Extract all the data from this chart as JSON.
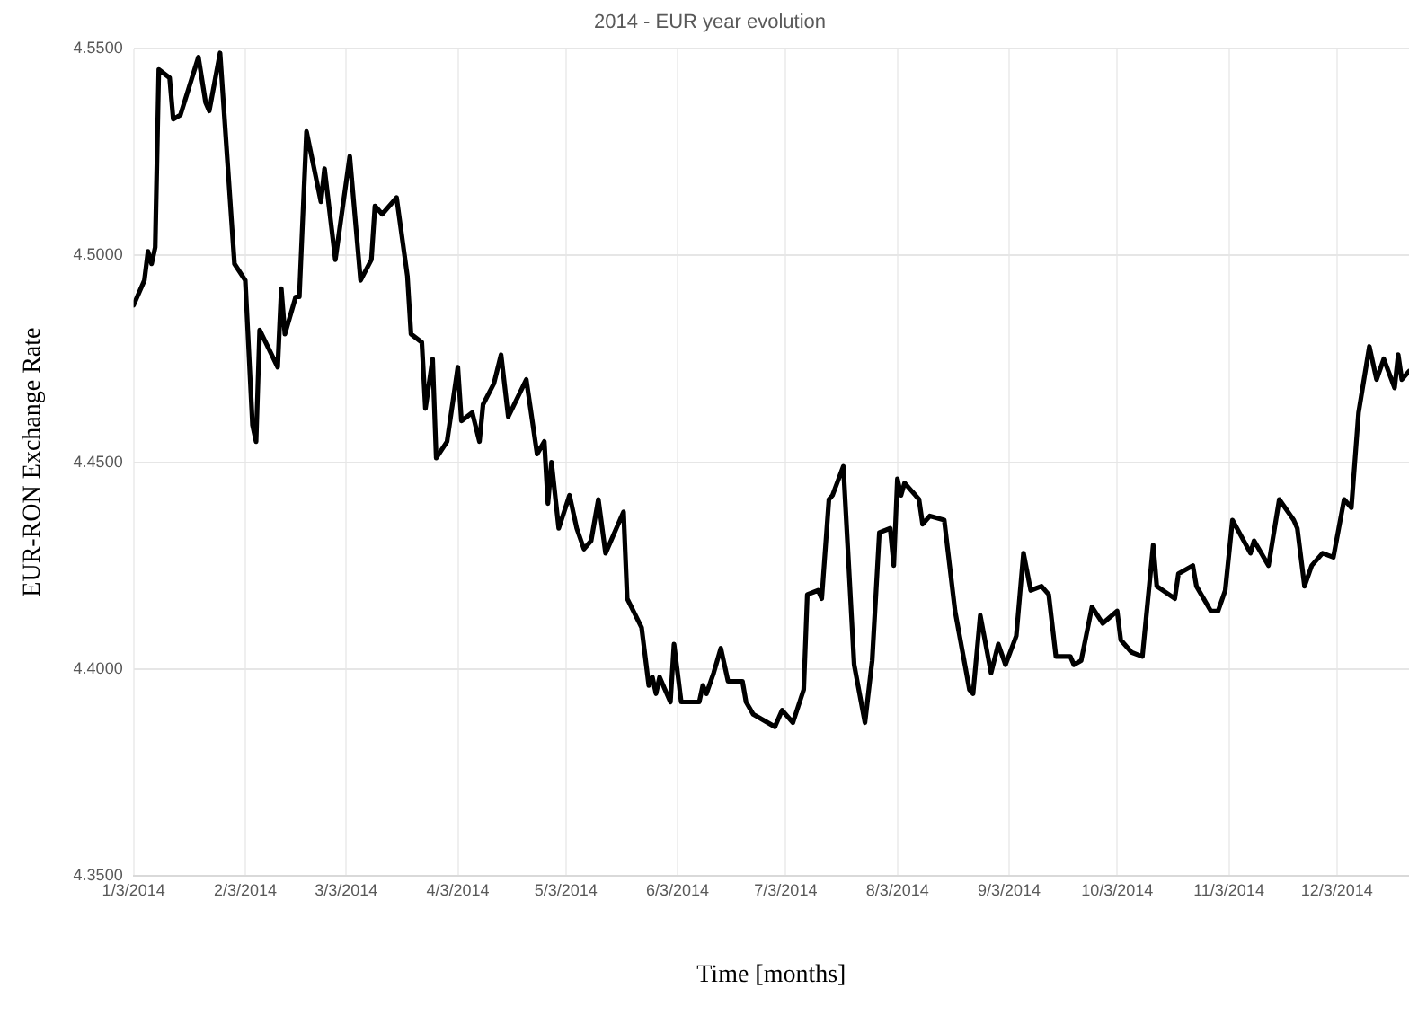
{
  "chart_data": {
    "type": "line",
    "title": "2014 - EUR year evolution",
    "xlabel": "Time [months]",
    "ylabel": "EUR-RON Exchange Rate",
    "x": [
      "2014-01-03",
      "2014-01-06",
      "2014-01-07",
      "2014-01-08",
      "2014-01-09",
      "2014-01-10",
      "2014-01-13",
      "2014-01-14",
      "2014-01-16",
      "2014-01-21",
      "2014-01-23",
      "2014-01-24",
      "2014-01-27",
      "2014-01-31",
      "2014-02-03",
      "2014-02-05",
      "2014-02-06",
      "2014-02-07",
      "2014-02-12",
      "2014-02-13",
      "2014-02-14",
      "2014-02-17",
      "2014-02-18",
      "2014-02-20",
      "2014-02-24",
      "2014-02-25",
      "2014-02-28",
      "2014-03-04",
      "2014-03-07",
      "2014-03-10",
      "2014-03-11",
      "2014-03-13",
      "2014-03-17",
      "2014-03-20",
      "2014-03-21",
      "2014-03-24",
      "2014-03-25",
      "2014-03-27",
      "2014-03-28",
      "2014-03-31",
      "2014-04-03",
      "2014-04-04",
      "2014-04-07",
      "2014-04-09",
      "2014-04-10",
      "2014-04-13",
      "2014-04-15",
      "2014-04-17",
      "2014-04-22",
      "2014-04-25",
      "2014-04-27",
      "2014-04-28",
      "2014-04-29",
      "2014-05-01",
      "2014-05-04",
      "2014-05-06",
      "2014-05-08",
      "2014-05-10",
      "2014-05-12",
      "2014-05-14",
      "2014-05-19",
      "2014-05-20",
      "2014-05-24",
      "2014-05-26",
      "2014-05-27",
      "2014-05-28",
      "2014-05-29",
      "2014-06-01",
      "2014-06-02",
      "2014-06-04",
      "2014-06-09",
      "2014-06-10",
      "2014-06-11",
      "2014-06-13",
      "2014-06-15",
      "2014-06-17",
      "2014-06-21",
      "2014-06-22",
      "2014-06-24",
      "2014-06-30",
      "2014-07-02",
      "2014-07-05",
      "2014-07-08",
      "2014-07-09",
      "2014-07-12",
      "2014-07-13",
      "2014-07-15",
      "2014-07-16",
      "2014-07-19",
      "2014-07-22",
      "2014-07-25",
      "2014-07-27",
      "2014-07-29",
      "2014-08-01",
      "2014-08-02",
      "2014-08-03",
      "2014-08-04",
      "2014-08-05",
      "2014-08-09",
      "2014-08-10",
      "2014-08-12",
      "2014-08-16",
      "2014-08-19",
      "2014-08-23",
      "2014-08-24",
      "2014-08-26",
      "2014-08-29",
      "2014-08-31",
      "2014-09-02",
      "2014-09-05",
      "2014-09-07",
      "2014-09-09",
      "2014-09-12",
      "2014-09-14",
      "2014-09-16",
      "2014-09-20",
      "2014-09-21",
      "2014-09-23",
      "2014-09-26",
      "2014-09-29",
      "2014-10-03",
      "2014-10-04",
      "2014-10-07",
      "2014-10-10",
      "2014-10-11",
      "2014-10-13",
      "2014-10-14",
      "2014-10-19",
      "2014-10-20",
      "2014-10-24",
      "2014-10-25",
      "2014-10-29",
      "2014-10-31",
      "2014-11-02",
      "2014-11-04",
      "2014-11-09",
      "2014-11-10",
      "2014-11-14",
      "2014-11-17",
      "2014-11-21",
      "2014-11-22",
      "2014-11-24",
      "2014-11-26",
      "2014-11-29",
      "2014-12-02",
      "2014-12-05",
      "2014-12-07",
      "2014-12-09",
      "2014-12-12",
      "2014-12-14",
      "2014-12-16",
      "2014-12-19",
      "2014-12-20",
      "2014-12-21",
      "2014-12-23"
    ],
    "series": [
      {
        "color": "#000000",
        "values": [
          4.488,
          4.494,
          4.501,
          4.498,
          4.502,
          4.545,
          4.543,
          4.533,
          4.534,
          4.548,
          4.537,
          4.535,
          4.549,
          4.498,
          4.494,
          4.459,
          4.455,
          4.482,
          4.473,
          4.492,
          4.481,
          4.49,
          4.49,
          4.53,
          4.513,
          4.521,
          4.499,
          4.524,
          4.494,
          4.499,
          4.512,
          4.51,
          4.514,
          4.495,
          4.481,
          4.479,
          4.463,
          4.475,
          4.451,
          4.455,
          4.473,
          4.46,
          4.462,
          4.455,
          4.464,
          4.469,
          4.476,
          4.461,
          4.47,
          4.452,
          4.455,
          4.44,
          4.45,
          4.434,
          4.442,
          4.434,
          4.429,
          4.431,
          4.441,
          4.428,
          4.438,
          4.417,
          4.41,
          4.396,
          4.398,
          4.394,
          4.398,
          4.392,
          4.406,
          4.392,
          4.392,
          4.396,
          4.394,
          4.399,
          4.405,
          4.397,
          4.397,
          4.392,
          4.389,
          4.386,
          4.39,
          4.387,
          4.395,
          4.418,
          4.419,
          4.417,
          4.441,
          4.442,
          4.449,
          4.401,
          4.387,
          4.402,
          4.433,
          4.434,
          4.425,
          4.446,
          4.442,
          4.445,
          4.441,
          4.435,
          4.437,
          4.436,
          4.414,
          4.395,
          4.394,
          4.413,
          4.399,
          4.406,
          4.401,
          4.408,
          4.428,
          4.419,
          4.42,
          4.418,
          4.403,
          4.403,
          4.401,
          4.402,
          4.415,
          4.411,
          4.414,
          4.407,
          4.404,
          4.403,
          4.412,
          4.43,
          4.42,
          4.417,
          4.423,
          4.425,
          4.42,
          4.414,
          4.414,
          4.419,
          4.436,
          4.428,
          4.431,
          4.425,
          4.441,
          4.436,
          4.434,
          4.42,
          4.425,
          4.428,
          4.427,
          4.441,
          4.439,
          4.462,
          4.478,
          4.47,
          4.475,
          4.468,
          4.476,
          4.47,
          4.472
        ]
      }
    ],
    "xlim": [
      "2014-01-03",
      "2014-12-23"
    ],
    "xticks": [
      {
        "value": "2014-01-03",
        "label": "1/3/2014"
      },
      {
        "value": "2014-02-03",
        "label": "2/3/2014"
      },
      {
        "value": "2014-03-03",
        "label": "3/3/2014"
      },
      {
        "value": "2014-04-03",
        "label": "4/3/2014"
      },
      {
        "value": "2014-05-03",
        "label": "5/3/2014"
      },
      {
        "value": "2014-06-03",
        "label": "6/3/2014"
      },
      {
        "value": "2014-07-03",
        "label": "7/3/2014"
      },
      {
        "value": "2014-08-03",
        "label": "8/3/2014"
      },
      {
        "value": "2014-09-03",
        "label": "9/3/2014"
      },
      {
        "value": "2014-10-03",
        "label": "10/3/2014"
      },
      {
        "value": "2014-11-03",
        "label": "11/3/2014"
      },
      {
        "value": "2014-12-03",
        "label": "12/3/2014"
      }
    ],
    "ylim": [
      4.35,
      4.55
    ],
    "yticks": [
      {
        "value": 4.35,
        "label": "4.3500"
      },
      {
        "value": 4.4,
        "label": "4.4000"
      },
      {
        "value": 4.45,
        "label": "4.4500"
      },
      {
        "value": 4.5,
        "label": "4.5000"
      },
      {
        "value": 4.55,
        "label": "4.5500"
      }
    ],
    "grid": true,
    "legend": false,
    "marker": "none",
    "line_style": "solid"
  }
}
